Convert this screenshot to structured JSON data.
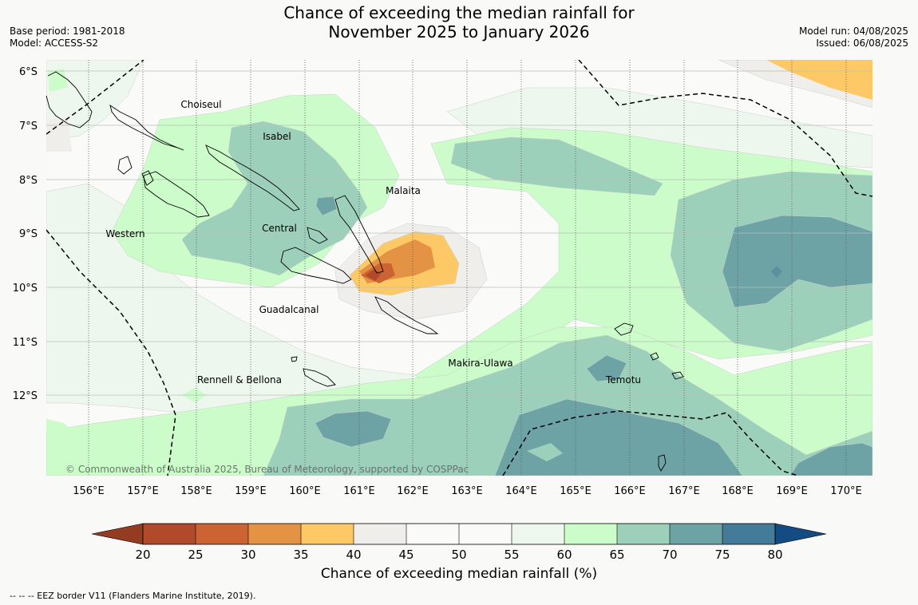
{
  "title": {
    "line1": "Chance of exceeding the median rainfall for",
    "line2": "November 2025 to January 2026"
  },
  "meta_left": {
    "base_period": "Base period: 1981-2018",
    "model": "Model: ACCESS-S2"
  },
  "meta_right": {
    "model_run": "Model run: 04/08/2025",
    "issued": "Issued: 06/08/2025"
  },
  "map": {
    "lat_labels": [
      "6°S",
      "7°S",
      "8°S",
      "9°S",
      "10°S",
      "11°S",
      "12°S"
    ],
    "lon_labels": [
      "156°E",
      "157°E",
      "158°E",
      "159°E",
      "160°E",
      "161°E",
      "162°E",
      "163°E",
      "164°E",
      "165°E",
      "166°E",
      "167°E",
      "168°E",
      "169°E",
      "170°E"
    ],
    "provinces": [
      {
        "name": "Choiseul"
      },
      {
        "name": "Isabel"
      },
      {
        "name": "Malaita"
      },
      {
        "name": "Central"
      },
      {
        "name": "Western"
      },
      {
        "name": "Guadalcanal"
      },
      {
        "name": "Makira-Ulawa"
      },
      {
        "name": "Rennell & Bellona"
      },
      {
        "name": "Temotu"
      }
    ],
    "copyright": "© Commonwealth of Australia 2025, Bureau of Meteorology, supported by COSPPac",
    "colors": {
      "c20_25": "#b04a2a",
      "c25_30": "#cc6333",
      "c30_35": "#e39343",
      "c35_40": "#fdc966",
      "c40_45": "#f0eeea",
      "c45_50": "#fafbf9",
      "c50_55": "#fafbf9",
      "c55_60": "#eef7ee",
      "c60_65": "#ccfcca",
      "c65_70": "#9dd0bb",
      "c70_75": "#6ea3a6",
      "c75_80": "#437b99",
      "below": "#943c22",
      "above": "#134b82"
    }
  },
  "colorbar": {
    "ticks": [
      "20",
      "25",
      "30",
      "35",
      "40",
      "45",
      "50",
      "55",
      "60",
      "65",
      "70",
      "75",
      "80"
    ],
    "label": "Chance of exceeding median rainfall (%)"
  },
  "footer": "--  --  -- EEZ border V11 (Flanders Marine Institute, 2019)."
}
